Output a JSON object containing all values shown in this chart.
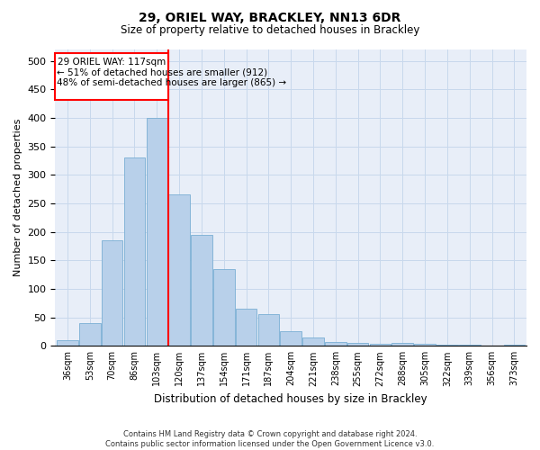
{
  "title": "29, ORIEL WAY, BRACKLEY, NN13 6DR",
  "subtitle": "Size of property relative to detached houses in Brackley",
  "xlabel": "Distribution of detached houses by size in Brackley",
  "ylabel": "Number of detached properties",
  "footer_line1": "Contains HM Land Registry data © Crown copyright and database right 2024.",
  "footer_line2": "Contains public sector information licensed under the Open Government Licence v3.0.",
  "categories": [
    "36sqm",
    "53sqm",
    "70sqm",
    "86sqm",
    "103sqm",
    "120sqm",
    "137sqm",
    "154sqm",
    "171sqm",
    "187sqm",
    "204sqm",
    "221sqm",
    "238sqm",
    "255sqm",
    "272sqm",
    "288sqm",
    "305sqm",
    "322sqm",
    "339sqm",
    "356sqm",
    "373sqm"
  ],
  "values": [
    10,
    40,
    185,
    330,
    400,
    265,
    195,
    135,
    65,
    55,
    25,
    15,
    7,
    5,
    4,
    5,
    4,
    2,
    2,
    1,
    2
  ],
  "bar_color": "#b8d0ea",
  "bar_edge_color": "#7aafd4",
  "annotation_text_line1": "29 ORIEL WAY: 117sqm",
  "annotation_text_line2": "← 51% of detached houses are smaller (912)",
  "annotation_text_line3": "48% of semi-detached houses are larger (865) →",
  "annotation_box_color": "white",
  "annotation_box_edge": "red",
  "property_line_color": "red",
  "ylim": [
    0,
    520
  ],
  "yticks": [
    0,
    50,
    100,
    150,
    200,
    250,
    300,
    350,
    400,
    450,
    500
  ],
  "grid_color": "#c8d8ec",
  "background_color": "#e8eef8"
}
